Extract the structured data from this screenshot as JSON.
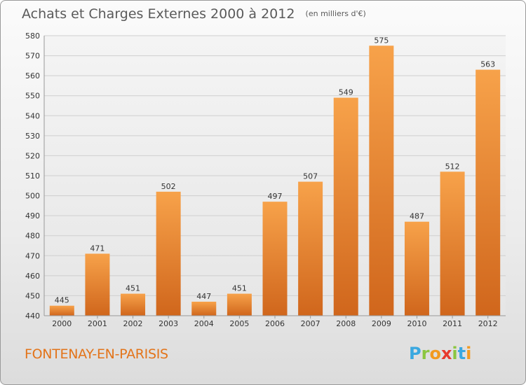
{
  "header": {
    "title": "Achats et Charges Externes 2000 à 2012",
    "subtitle": "(en milliers d'€)"
  },
  "footer": {
    "commune": "FONTENAY-EN-PARISIS",
    "logo_letters": [
      "P",
      "r",
      "o",
      "x",
      "i",
      "t",
      "i"
    ],
    "logo_colors": [
      "#3aa8e0",
      "#8cc63f",
      "#f29a20",
      "#e8392c",
      "#8cc63f",
      "#3aa8e0",
      "#f29a20"
    ]
  },
  "chart_data": {
    "type": "bar",
    "title": "Achats et Charges Externes 2000 à 2012",
    "subtitle": "(en milliers d'€)",
    "xlabel": "",
    "ylabel": "",
    "categories": [
      "2000",
      "2001",
      "2002",
      "2003",
      "2004",
      "2005",
      "2006",
      "2007",
      "2008",
      "2009",
      "2010",
      "2011",
      "2012"
    ],
    "values": [
      445,
      471,
      451,
      502,
      447,
      451,
      497,
      507,
      549,
      575,
      487,
      512,
      563
    ],
    "ylim": [
      440,
      580
    ],
    "yticks": [
      440,
      450,
      460,
      470,
      480,
      490,
      500,
      510,
      520,
      530,
      540,
      550,
      560,
      570,
      580
    ],
    "grid": true,
    "bar_color": "#f28c28"
  }
}
